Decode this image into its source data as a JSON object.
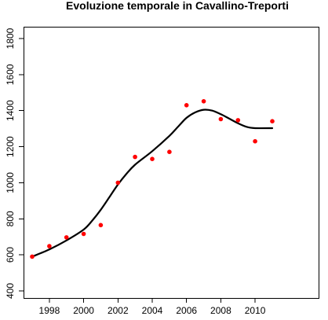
{
  "chart_data": {
    "type": "scatter",
    "title": "Evoluzione temporale in Cavallino-Treporti",
    "xlabel": "",
    "ylabel": "",
    "x_range": [
      1997,
      2011
    ],
    "y_range": [
      400,
      1800
    ],
    "x_ticks": [
      1998,
      2000,
      2002,
      2004,
      2006,
      2008,
      2010
    ],
    "y_ticks": [
      400,
      600,
      800,
      1000,
      1200,
      1400,
      1600,
      1800
    ],
    "grid": false,
    "legend": "none",
    "points_color": "#ff0000",
    "line_color": "#000000",
    "points": [
      {
        "x": 1997,
        "y": 590
      },
      {
        "x": 1998,
        "y": 648
      },
      {
        "x": 1999,
        "y": 697
      },
      {
        "x": 2000,
        "y": 716
      },
      {
        "x": 2001,
        "y": 765
      },
      {
        "x": 2002,
        "y": 1000
      },
      {
        "x": 2003,
        "y": 1143
      },
      {
        "x": 2004,
        "y": 1132
      },
      {
        "x": 2005,
        "y": 1171
      },
      {
        "x": 2006,
        "y": 1430
      },
      {
        "x": 2007,
        "y": 1452
      },
      {
        "x": 2008,
        "y": 1353
      },
      {
        "x": 2009,
        "y": 1347
      },
      {
        "x": 2010,
        "y": 1230
      },
      {
        "x": 2011,
        "y": 1341
      }
    ],
    "smooth_line": [
      {
        "x": 1997.0,
        "y": 590
      },
      {
        "x": 1998.0,
        "y": 630
      },
      {
        "x": 1999.0,
        "y": 680
      },
      {
        "x": 2000.0,
        "y": 740
      },
      {
        "x": 2000.5,
        "y": 790
      },
      {
        "x": 2001.0,
        "y": 850
      },
      {
        "x": 2001.5,
        "y": 920
      },
      {
        "x": 2002.0,
        "y": 990
      },
      {
        "x": 2002.5,
        "y": 1050
      },
      {
        "x": 2003.0,
        "y": 1100
      },
      {
        "x": 2004.0,
        "y": 1175
      },
      {
        "x": 2005.0,
        "y": 1260
      },
      {
        "x": 2005.5,
        "y": 1310
      },
      {
        "x": 2006.0,
        "y": 1360
      },
      {
        "x": 2006.5,
        "y": 1390
      },
      {
        "x": 2007.0,
        "y": 1405
      },
      {
        "x": 2007.5,
        "y": 1400
      },
      {
        "x": 2008.0,
        "y": 1380
      },
      {
        "x": 2008.5,
        "y": 1355
      },
      {
        "x": 2009.0,
        "y": 1330
      },
      {
        "x": 2009.5,
        "y": 1310
      },
      {
        "x": 2010.0,
        "y": 1303
      },
      {
        "x": 2011.0,
        "y": 1303
      }
    ]
  }
}
